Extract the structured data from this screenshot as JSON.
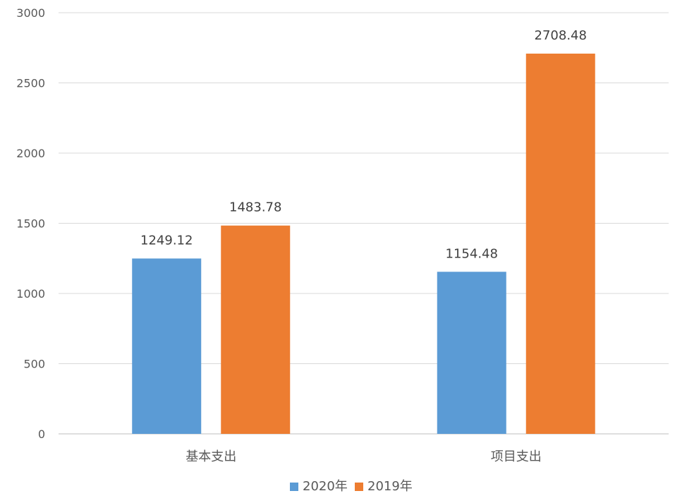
{
  "chart_data": {
    "type": "bar",
    "categories": [
      "基本支出",
      "项目支出"
    ],
    "series": [
      {
        "name": "2020年",
        "values": [
          1249.12,
          1154.48
        ],
        "labels": [
          "1249.12",
          "1154.48"
        ],
        "color": "#5B9BD5"
      },
      {
        "name": "2019年",
        "values": [
          1483.78,
          2708.48
        ],
        "labels": [
          "1483.78",
          "2708.48"
        ],
        "color": "#ED7D31"
      }
    ],
    "ylim": [
      0,
      3000
    ],
    "yticks": [
      0,
      500,
      1000,
      1500,
      2000,
      2500,
      3000
    ],
    "ytick_labels": [
      "0",
      "500",
      "1000",
      "1500",
      "2000",
      "2500",
      "3000"
    ],
    "grid": true,
    "legend_position": "bottom",
    "title": "",
    "xlabel": "",
    "ylabel": ""
  }
}
